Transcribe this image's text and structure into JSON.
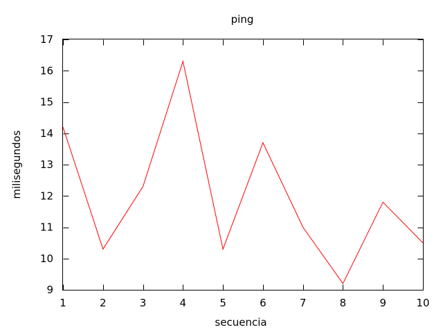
{
  "chart_data": {
    "type": "line",
    "title": "ping",
    "xlabel": "secuencia",
    "ylabel": "milisegundos",
    "xlim": [
      1,
      10
    ],
    "ylim": [
      9,
      17
    ],
    "x": [
      1,
      2,
      3,
      4,
      5,
      6,
      7,
      8,
      9,
      10
    ],
    "xticks": [
      "1",
      "2",
      "3",
      "4",
      "5",
      "6",
      "7",
      "8",
      "9",
      "10"
    ],
    "yticks": [
      "9",
      "10",
      "11",
      "12",
      "13",
      "14",
      "15",
      "16",
      "17"
    ],
    "grid": false,
    "legend": "none",
    "series": [
      {
        "values": [
          14.2,
          10.3,
          12.3,
          16.3,
          10.3,
          13.7,
          11.0,
          9.2,
          11.8,
          10.5
        ],
        "color": "#ff0000"
      }
    ]
  }
}
